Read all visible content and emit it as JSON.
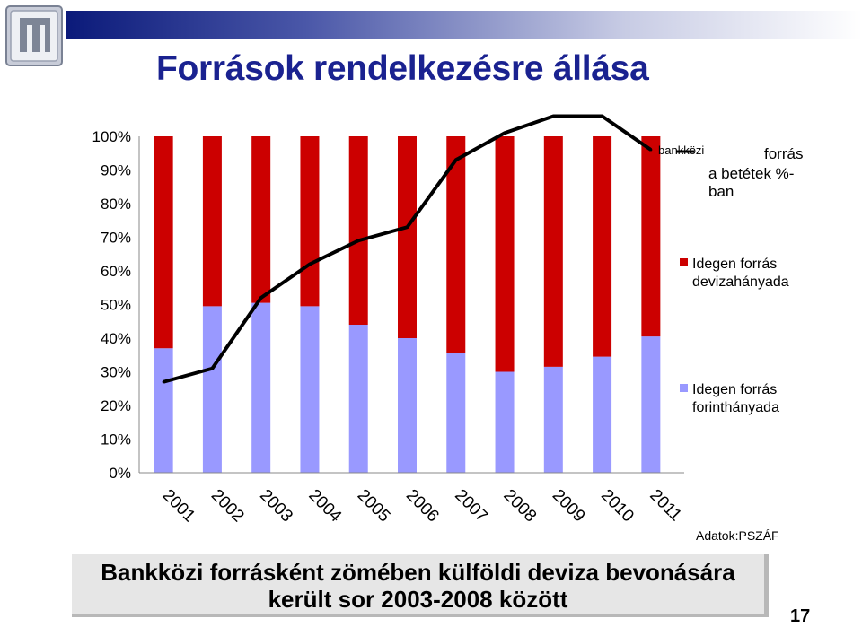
{
  "title": "Források rendelkezésre állása",
  "chart_data": {
    "type": "bar",
    "stacked": true,
    "categories": [
      "2001",
      "2002",
      "2003",
      "2004",
      "2005",
      "2006",
      "2007",
      "2008",
      "2009",
      "2010",
      "2011"
    ],
    "ylim": [
      0,
      100
    ],
    "yticks": [
      "0%",
      "10%",
      "20%",
      "30%",
      "40%",
      "50%",
      "60%",
      "70%",
      "80%",
      "90%",
      "100%"
    ],
    "series": [
      {
        "name": "Idegen forrás forinthányada",
        "color": "#9999ff",
        "values": [
          37,
          49.5,
          50.5,
          49.5,
          44,
          40,
          35.5,
          30,
          31.5,
          34.5,
          40.5
        ]
      },
      {
        "name": "Idegen forrás devizahányada",
        "color": "#cc0000",
        "values": [
          63,
          50.5,
          49.5,
          50.5,
          56,
          60,
          64.5,
          70,
          68.5,
          65.5,
          59.5
        ]
      },
      {
        "name_parts": [
          "bankközi",
          "forrás",
          "a betétek %-",
          "ban"
        ],
        "color": "#000000",
        "type": "line",
        "values": [
          27,
          31,
          52,
          62,
          69,
          73,
          93,
          101,
          106,
          106,
          96
        ]
      }
    ],
    "legend_position": "right",
    "source": "Adatok:PSZÁF"
  },
  "footer": {
    "line1": "Bankközi forrásként zömében külföldi deviza bevonására",
    "line2": "került sor 2003-2008 között"
  },
  "page_number": "17",
  "logo_icon": "institution-logo-icon"
}
